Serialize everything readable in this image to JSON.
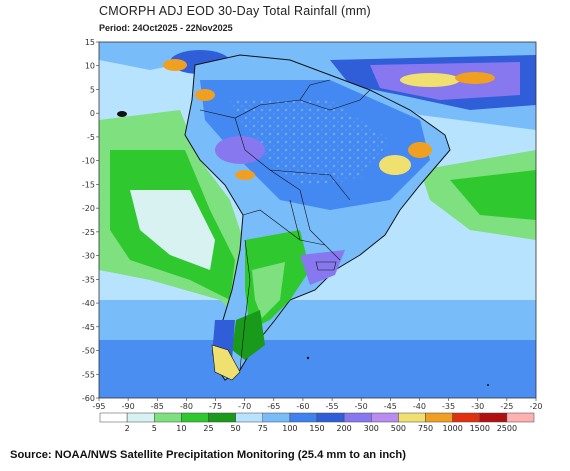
{
  "title": "CMORPH ADJ EOD 30-Day Total Rainfall (mm)",
  "period_label": "Period:",
  "period_value": "24Oct2025 - 22Nov2025",
  "source": "Source: NOAA/NWS Satellite Precipitation Monitoring (25.4 mm to an inch)",
  "map": {
    "lat_range": [
      -60,
      15
    ],
    "lon_range": [
      -95,
      -20
    ],
    "lat_ticks": [
      "15",
      "10",
      "5",
      "0",
      "-5",
      "-10",
      "-15",
      "-20",
      "-25",
      "-30",
      "-35",
      "-40",
      "-45",
      "-50",
      "-55",
      "-60"
    ],
    "lon_ticks": [
      "-95",
      "-90",
      "-85",
      "-80",
      "-75",
      "-70",
      "-65",
      "-60",
      "-55",
      "-50",
      "-45",
      "-40",
      "-35",
      "-30",
      "-25",
      "-20"
    ]
  },
  "legend": {
    "labels": [
      "2",
      "5",
      "10",
      "25",
      "50",
      "75",
      "100",
      "150",
      "200",
      "300",
      "500",
      "750",
      "1000",
      "1500",
      "2500"
    ],
    "colors": [
      "#ffffff",
      "#d8f2f2",
      "#7ee07e",
      "#2fc92f",
      "#1a9a1a",
      "#b8e3ff",
      "#78bdfa",
      "#3e82f0",
      "#2f5ed8",
      "#8878f0",
      "#b88cf0",
      "#f0e070",
      "#f0a020",
      "#e03010",
      "#b01010",
      "#ffb0b0"
    ]
  },
  "colors": {
    "ocean_light": "#b8e3ff",
    "ocean_mid": "#78bdfa",
    "land_green": "#2fc92f",
    "heavy_rain": "#2f5ed8",
    "extreme_yellow": "#f0e070",
    "extreme_orange": "#f0a020"
  }
}
